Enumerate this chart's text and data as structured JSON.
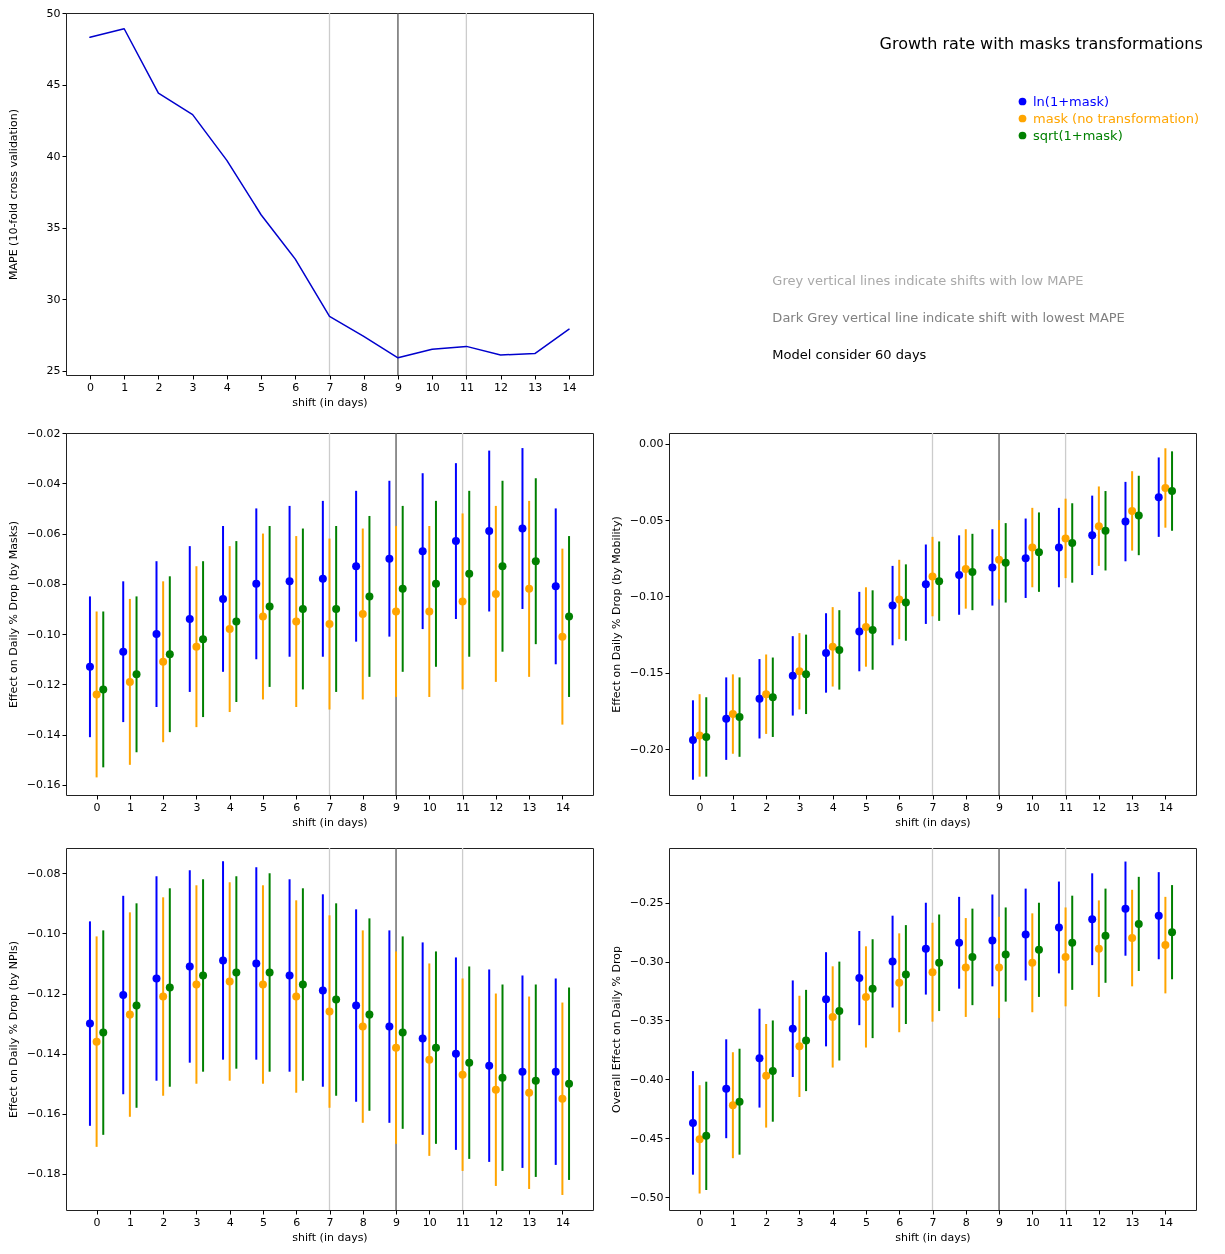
{
  "chart_data": [
    {
      "type": "line",
      "xlabel": "shift (in days)",
      "ylabel": "MAPE (10-fold cross validation)",
      "xlim": [
        -0.7,
        14.7
      ],
      "xticks": [
        0,
        1,
        2,
        3,
        4,
        5,
        6,
        7,
        8,
        9,
        10,
        11,
        12,
        13,
        14
      ],
      "ylim": [
        24.7,
        50
      ],
      "yticks": [
        25,
        30,
        35,
        40,
        45,
        50
      ],
      "x": [
        0,
        1,
        2,
        3,
        4,
        5,
        6,
        7,
        8,
        9,
        10,
        11,
        12,
        13,
        14
      ],
      "series": [
        {
          "color": "#0000cd",
          "values": [
            48.3,
            48.9,
            44.4,
            42.9,
            39.7,
            35.9,
            32.8,
            28.8,
            27.4,
            25.9,
            26.5,
            26.7,
            26.1,
            26.2,
            27.9
          ]
        }
      ],
      "ref_lines": [
        {
          "axis": "x",
          "value": 7,
          "color": "#cccccc"
        },
        {
          "axis": "x",
          "value": 9,
          "color": "#555555"
        },
        {
          "axis": "x",
          "value": 11,
          "color": "#cccccc"
        }
      ]
    },
    {
      "type": "other",
      "title": "Growth rate with masks transformations",
      "annotations": [
        "Grey vertical lines indicate shifts with low MAPE",
        "Dark Grey vertical line indicate shift with lowest MAPE",
        "Model consider 60 days"
      ]
    },
    {
      "type": "scatter",
      "xlabel": "shift (in days)",
      "ylabel": "Effect on Daily % Drop (by Masks)",
      "xlim": [
        -0.92,
        14.92
      ],
      "xticks": [
        0,
        1,
        2,
        3,
        4,
        5,
        6,
        7,
        8,
        9,
        10,
        11,
        12,
        13,
        14
      ],
      "ylim": [
        -0.164,
        -0.02
      ],
      "yticks": [
        {
          "value": -0.16,
          "label": "−0.16"
        },
        {
          "value": -0.14,
          "label": "−0.14"
        },
        {
          "value": -0.12,
          "label": "−0.12"
        },
        {
          "value": -0.1,
          "label": "−0.10"
        },
        {
          "value": -0.08,
          "label": "−0.08"
        },
        {
          "value": -0.06,
          "label": "−0.06"
        },
        {
          "value": -0.04,
          "label": "−0.04"
        },
        {
          "value": -0.02,
          "label": "−0.02"
        }
      ],
      "marker": "circle",
      "legend": "top right",
      "series": [
        {
          "name": "ln(1+mask)",
          "color": "#0000ff",
          "x": [
            -0.2,
            0.8,
            1.8,
            2.8,
            3.8,
            4.8,
            5.8,
            6.8,
            7.8,
            8.8,
            9.8,
            10.8,
            11.8,
            12.8,
            13.8
          ],
          "values": [
            -0.113,
            -0.107,
            -0.1,
            -0.094,
            -0.086,
            -0.08,
            -0.079,
            -0.078,
            -0.073,
            -0.07,
            -0.067,
            -0.063,
            -0.059,
            -0.058,
            -0.081
          ],
          "errors": [
            0.028,
            0.028,
            0.029,
            0.029,
            0.029,
            0.03,
            0.03,
            0.031,
            0.03,
            0.031,
            0.031,
            0.031,
            0.032,
            0.032,
            0.031
          ]
        },
        {
          "name": "mask (no transformation)",
          "color": "#ffa500",
          "x": [
            0,
            1,
            2,
            3,
            4,
            5,
            6,
            7,
            8,
            9,
            10,
            11,
            12,
            13,
            14
          ],
          "values": [
            -0.124,
            -0.119,
            -0.111,
            -0.105,
            -0.098,
            -0.093,
            -0.095,
            -0.096,
            -0.092,
            -0.091,
            -0.091,
            -0.087,
            -0.084,
            -0.082,
            -0.101
          ],
          "errors": [
            0.033,
            0.033,
            0.032,
            0.032,
            0.033,
            0.033,
            0.034,
            0.034,
            0.034,
            0.034,
            0.034,
            0.035,
            0.035,
            0.035,
            0.035
          ]
        },
        {
          "name": "sqrt(1+mask)",
          "color": "#008000",
          "x": [
            0.2,
            1.2,
            2.2,
            3.2,
            4.2,
            5.2,
            6.2,
            7.2,
            8.2,
            9.2,
            10.2,
            11.2,
            12.2,
            13.2,
            14.2
          ],
          "values": [
            -0.122,
            -0.116,
            -0.108,
            -0.102,
            -0.095,
            -0.089,
            -0.09,
            -0.09,
            -0.085,
            -0.082,
            -0.08,
            -0.076,
            -0.073,
            -0.071,
            -0.093
          ],
          "errors": [
            0.031,
            0.031,
            0.031,
            0.031,
            0.032,
            0.032,
            0.032,
            0.033,
            0.032,
            0.033,
            0.033,
            0.033,
            0.034,
            0.033,
            0.032
          ]
        }
      ],
      "ref_lines": [
        {
          "axis": "x",
          "value": 7,
          "color": "#cccccc"
        },
        {
          "axis": "x",
          "value": 9,
          "color": "#555555"
        },
        {
          "axis": "x",
          "value": 11,
          "color": "#cccccc"
        }
      ]
    },
    {
      "type": "scatter",
      "xlabel": "shift (in days)",
      "ylabel": "Effect on Daily % Drop (by Mobility)",
      "xlim": [
        -0.92,
        14.92
      ],
      "xticks": [
        0,
        1,
        2,
        3,
        4,
        5,
        6,
        7,
        8,
        9,
        10,
        11,
        12,
        13,
        14
      ],
      "ylim": [
        -0.23,
        0.007
      ],
      "yticks": [
        {
          "value": -0.2,
          "label": "−0.20"
        },
        {
          "value": -0.15,
          "label": "−0.15"
        },
        {
          "value": -0.1,
          "label": "−0.10"
        },
        {
          "value": -0.05,
          "label": "−0.05"
        },
        {
          "value": 0,
          "label": "0.00"
        }
      ],
      "marker": "circle",
      "series": [
        {
          "name": "ln(1+mask)",
          "color": "#0000ff",
          "x": [
            -0.2,
            0.8,
            1.8,
            2.8,
            3.8,
            4.8,
            5.8,
            6.8,
            7.8,
            8.8,
            9.8,
            10.8,
            11.8,
            12.8,
            13.8
          ],
          "values": [
            -0.194,
            -0.18,
            -0.167,
            -0.152,
            -0.137,
            -0.123,
            -0.106,
            -0.092,
            -0.086,
            -0.081,
            -0.075,
            -0.068,
            -0.06,
            -0.051,
            -0.035
          ],
          "errors": [
            0.026,
            0.027,
            0.026,
            0.026,
            0.026,
            0.026,
            0.026,
            0.026,
            0.026,
            0.025,
            0.026,
            0.026,
            0.026,
            0.026,
            0.026
          ]
        },
        {
          "name": "mask (no transformation)",
          "color": "#ffa500",
          "x": [
            0,
            1,
            2,
            3,
            4,
            5,
            6,
            7,
            8,
            9,
            10,
            11,
            12,
            13,
            14
          ],
          "values": [
            -0.191,
            -0.177,
            -0.164,
            -0.149,
            -0.133,
            -0.12,
            -0.102,
            -0.087,
            -0.082,
            -0.076,
            -0.068,
            -0.062,
            -0.054,
            -0.044,
            -0.029
          ],
          "errors": [
            0.027,
            0.026,
            0.026,
            0.025,
            0.026,
            0.026,
            0.026,
            0.026,
            0.026,
            0.026,
            0.026,
            0.026,
            0.026,
            0.026,
            0.026
          ]
        },
        {
          "name": "sqrt(1+mask)",
          "color": "#008000",
          "x": [
            0.2,
            1.2,
            2.2,
            3.2,
            4.2,
            5.2,
            6.2,
            7.2,
            8.2,
            9.2,
            10.2,
            11.2,
            12.2,
            13.2,
            14.2
          ],
          "values": [
            -0.192,
            -0.179,
            -0.166,
            -0.151,
            -0.135,
            -0.122,
            -0.104,
            -0.09,
            -0.084,
            -0.078,
            -0.071,
            -0.065,
            -0.057,
            -0.047,
            -0.031
          ],
          "errors": [
            0.026,
            0.026,
            0.026,
            0.026,
            0.026,
            0.026,
            0.025,
            0.026,
            0.025,
            0.026,
            0.026,
            0.026,
            0.026,
            0.026,
            0.026
          ]
        }
      ],
      "ref_lines": [
        {
          "axis": "x",
          "value": 7,
          "color": "#cccccc"
        },
        {
          "axis": "x",
          "value": 9,
          "color": "#555555"
        },
        {
          "axis": "x",
          "value": 11,
          "color": "#cccccc"
        }
      ]
    },
    {
      "type": "scatter",
      "xlabel": "shift (in days)",
      "ylabel": "Effect on Daily % Drop (by NPIs)",
      "xlim": [
        -0.92,
        14.92
      ],
      "xticks": [
        0,
        1,
        2,
        3,
        4,
        5,
        6,
        7,
        8,
        9,
        10,
        11,
        12,
        13,
        14
      ],
      "ylim": [
        -0.192,
        -0.0716
      ],
      "yticks": [
        {
          "value": -0.18,
          "label": "−0.18"
        },
        {
          "value": -0.16,
          "label": "−0.16"
        },
        {
          "value": -0.14,
          "label": "−0.14"
        },
        {
          "value": -0.12,
          "label": "−0.12"
        },
        {
          "value": -0.1,
          "label": "−0.10"
        },
        {
          "value": -0.08,
          "label": "−0.08"
        }
      ],
      "marker": "circle",
      "series": [
        {
          "name": "ln(1+mask)",
          "color": "#0000ff",
          "x": [
            -0.2,
            0.8,
            1.8,
            2.8,
            3.8,
            4.8,
            5.8,
            6.8,
            7.8,
            8.8,
            9.8,
            10.8,
            11.8,
            12.8,
            13.8
          ],
          "values": [
            -0.13,
            -0.1205,
            -0.115,
            -0.111,
            -0.109,
            -0.11,
            -0.114,
            -0.119,
            -0.124,
            -0.131,
            -0.135,
            -0.14,
            -0.144,
            -0.146,
            -0.146
          ],
          "errors": [
            0.034,
            0.033,
            0.034,
            0.032,
            0.033,
            0.032,
            0.032,
            0.032,
            0.032,
            0.032,
            0.032,
            0.032,
            0.032,
            0.032,
            0.031
          ]
        },
        {
          "name": "mask (no transformation)",
          "color": "#ffa500",
          "x": [
            0,
            1,
            2,
            3,
            4,
            5,
            6,
            7,
            8,
            9,
            10,
            11,
            12,
            13,
            14
          ],
          "values": [
            -0.136,
            -0.127,
            -0.121,
            -0.117,
            -0.116,
            -0.117,
            -0.121,
            -0.126,
            -0.131,
            -0.138,
            -0.142,
            -0.147,
            -0.152,
            -0.153,
            -0.155
          ],
          "errors": [
            0.035,
            0.034,
            0.033,
            0.033,
            0.033,
            0.033,
            0.032,
            0.032,
            0.032,
            0.032,
            0.032,
            0.032,
            0.032,
            0.032,
            0.032
          ]
        },
        {
          "name": "sqrt(1+mask)",
          "color": "#008000",
          "x": [
            0.2,
            1.2,
            2.2,
            3.2,
            4.2,
            5.2,
            6.2,
            7.2,
            8.2,
            9.2,
            10.2,
            11.2,
            12.2,
            13.2,
            14.2
          ],
          "values": [
            -0.133,
            -0.124,
            -0.118,
            -0.114,
            -0.113,
            -0.113,
            -0.117,
            -0.122,
            -0.127,
            -0.133,
            -0.138,
            -0.143,
            -0.148,
            -0.149,
            -0.15
          ],
          "errors": [
            0.034,
            0.034,
            0.033,
            0.032,
            0.032,
            0.033,
            0.032,
            0.032,
            0.032,
            0.032,
            0.032,
            0.032,
            0.031,
            0.032,
            0.032
          ]
        }
      ],
      "ref_lines": [
        {
          "axis": "x",
          "value": 7,
          "color": "#cccccc"
        },
        {
          "axis": "x",
          "value": 9,
          "color": "#555555"
        },
        {
          "axis": "x",
          "value": 11,
          "color": "#cccccc"
        }
      ]
    },
    {
      "type": "scatter",
      "xlabel": "shift (in days)",
      "ylabel": "Overall Effect on Daily % Drop",
      "xlim": [
        -0.92,
        14.92
      ],
      "xticks": [
        0,
        1,
        2,
        3,
        4,
        5,
        6,
        7,
        8,
        9,
        10,
        11,
        12,
        13,
        14
      ],
      "ylim": [
        -0.511,
        -0.2035
      ],
      "yticks": [
        {
          "value": -0.5,
          "label": "−0.50"
        },
        {
          "value": -0.45,
          "label": "−0.45"
        },
        {
          "value": -0.4,
          "label": "−0.40"
        },
        {
          "value": -0.35,
          "label": "−0.35"
        },
        {
          "value": -0.3,
          "label": "−0.30"
        },
        {
          "value": -0.25,
          "label": "−0.25"
        }
      ],
      "marker": "circle",
      "series": [
        {
          "name": "ln(1+mask)",
          "color": "#0000ff",
          "x": [
            -0.2,
            0.8,
            1.8,
            2.8,
            3.8,
            4.8,
            5.8,
            6.8,
            7.8,
            8.8,
            9.8,
            10.8,
            11.8,
            12.8,
            13.8
          ],
          "values": [
            -0.437,
            -0.408,
            -0.382,
            -0.357,
            -0.332,
            -0.314,
            -0.3,
            -0.289,
            -0.284,
            -0.282,
            -0.277,
            -0.271,
            -0.264,
            -0.255,
            -0.261
          ],
          "errors": [
            0.044,
            0.042,
            0.042,
            0.041,
            0.04,
            0.04,
            0.039,
            0.039,
            0.039,
            0.039,
            0.039,
            0.039,
            0.039,
            0.04,
            0.037
          ]
        },
        {
          "name": "mask (no transformation)",
          "color": "#ffa500",
          "x": [
            0,
            1,
            2,
            3,
            4,
            5,
            6,
            7,
            8,
            9,
            10,
            11,
            12,
            13,
            14
          ],
          "values": [
            -0.451,
            -0.422,
            -0.397,
            -0.372,
            -0.347,
            -0.33,
            -0.318,
            -0.309,
            -0.305,
            -0.305,
            -0.301,
            -0.296,
            -0.289,
            -0.28,
            -0.286
          ],
          "errors": [
            0.046,
            0.045,
            0.044,
            0.043,
            0.043,
            0.043,
            0.042,
            0.042,
            0.042,
            0.043,
            0.042,
            0.042,
            0.041,
            0.041,
            0.041
          ]
        },
        {
          "name": "sqrt(1+mask)",
          "color": "#008000",
          "x": [
            0.2,
            1.2,
            2.2,
            3.2,
            4.2,
            5.2,
            6.2,
            7.2,
            8.2,
            9.2,
            10.2,
            11.2,
            12.2,
            13.2,
            14.2
          ],
          "values": [
            -0.448,
            -0.419,
            -0.393,
            -0.367,
            -0.342,
            -0.323,
            -0.311,
            -0.301,
            -0.296,
            -0.294,
            -0.29,
            -0.284,
            -0.278,
            -0.268,
            -0.275
          ],
          "errors": [
            0.046,
            0.045,
            0.043,
            0.043,
            0.042,
            0.042,
            0.042,
            0.041,
            0.041,
            0.04,
            0.04,
            0.04,
            0.04,
            0.04,
            0.04
          ]
        }
      ],
      "ref_lines": [
        {
          "axis": "x",
          "value": 7,
          "color": "#cccccc"
        },
        {
          "axis": "x",
          "value": 9,
          "color": "#555555"
        },
        {
          "axis": "x",
          "value": 11,
          "color": "#cccccc"
        }
      ]
    }
  ]
}
